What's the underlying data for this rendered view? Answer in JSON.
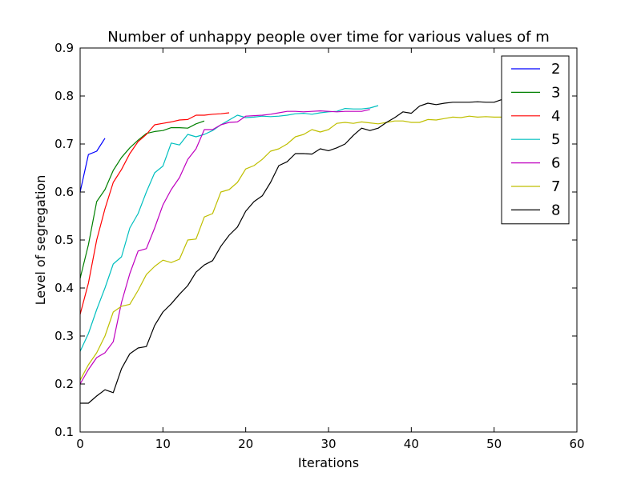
{
  "chart_data": {
    "type": "line",
    "title": "Number of unhappy people over time for various values of m",
    "xlabel": "Iterations",
    "ylabel": "Level of segregation",
    "xlim": [
      0,
      60
    ],
    "ylim": [
      0.1,
      0.9
    ],
    "xticks": [
      "0",
      "10",
      "20",
      "30",
      "40",
      "50",
      "60"
    ],
    "yticks": [
      "0.1",
      "0.2",
      "0.3",
      "0.4",
      "0.5",
      "0.6",
      "0.7",
      "0.8",
      "0.9"
    ],
    "grid": false,
    "legend_position": "top-right",
    "series": [
      {
        "name": "2",
        "color": "#0000ff",
        "values": [
          [
            0,
            0.6
          ],
          [
            1,
            0.678
          ],
          [
            2,
            0.685
          ],
          [
            3,
            0.712
          ]
        ]
      },
      {
        "name": "3",
        "color": "#008000",
        "values": [
          [
            0,
            0.42
          ],
          [
            1,
            0.49
          ],
          [
            2,
            0.58
          ],
          [
            3,
            0.605
          ],
          [
            4,
            0.645
          ],
          [
            5,
            0.672
          ],
          [
            6,
            0.692
          ],
          [
            7,
            0.708
          ],
          [
            8,
            0.722
          ],
          [
            9,
            0.726
          ],
          [
            10,
            0.728
          ],
          [
            11,
            0.734
          ],
          [
            12,
            0.734
          ],
          [
            13,
            0.733
          ],
          [
            14,
            0.742
          ],
          [
            15,
            0.748
          ]
        ]
      },
      {
        "name": "4",
        "color": "#ff0000",
        "values": [
          [
            0,
            0.345
          ],
          [
            1,
            0.41
          ],
          [
            2,
            0.5
          ],
          [
            3,
            0.565
          ],
          [
            4,
            0.62
          ],
          [
            5,
            0.647
          ],
          [
            6,
            0.68
          ],
          [
            7,
            0.705
          ],
          [
            8,
            0.72
          ],
          [
            9,
            0.74
          ],
          [
            10,
            0.743
          ],
          [
            11,
            0.746
          ],
          [
            12,
            0.75
          ],
          [
            13,
            0.751
          ],
          [
            14,
            0.76
          ],
          [
            15,
            0.76
          ],
          [
            16,
            0.762
          ],
          [
            17,
            0.763
          ],
          [
            18,
            0.765
          ]
        ]
      },
      {
        "name": "5",
        "color": "#00bfbf",
        "values": [
          [
            0,
            0.268
          ],
          [
            1,
            0.305
          ],
          [
            2,
            0.355
          ],
          [
            3,
            0.4
          ],
          [
            4,
            0.45
          ],
          [
            5,
            0.465
          ],
          [
            6,
            0.525
          ],
          [
            7,
            0.555
          ],
          [
            8,
            0.6
          ],
          [
            9,
            0.64
          ],
          [
            10,
            0.654
          ],
          [
            11,
            0.702
          ],
          [
            12,
            0.698
          ],
          [
            13,
            0.72
          ],
          [
            14,
            0.715
          ],
          [
            15,
            0.72
          ],
          [
            16,
            0.728
          ],
          [
            17,
            0.74
          ],
          [
            18,
            0.75
          ],
          [
            19,
            0.76
          ],
          [
            20,
            0.755
          ],
          [
            21,
            0.756
          ],
          [
            22,
            0.758
          ],
          [
            23,
            0.757
          ],
          [
            24,
            0.758
          ],
          [
            25,
            0.76
          ],
          [
            26,
            0.763
          ],
          [
            27,
            0.764
          ],
          [
            28,
            0.762
          ],
          [
            29,
            0.765
          ],
          [
            30,
            0.767
          ],
          [
            31,
            0.768
          ],
          [
            32,
            0.774
          ],
          [
            33,
            0.773
          ],
          [
            34,
            0.773
          ],
          [
            35,
            0.775
          ],
          [
            36,
            0.78
          ]
        ]
      },
      {
        "name": "6",
        "color": "#bf00bf",
        "values": [
          [
            0,
            0.2
          ],
          [
            1,
            0.23
          ],
          [
            2,
            0.255
          ],
          [
            3,
            0.265
          ],
          [
            4,
            0.288
          ],
          [
            5,
            0.37
          ],
          [
            6,
            0.43
          ],
          [
            7,
            0.477
          ],
          [
            8,
            0.482
          ],
          [
            9,
            0.525
          ],
          [
            10,
            0.573
          ],
          [
            11,
            0.605
          ],
          [
            12,
            0.63
          ],
          [
            13,
            0.668
          ],
          [
            14,
            0.69
          ],
          [
            15,
            0.73
          ],
          [
            16,
            0.73
          ],
          [
            17,
            0.74
          ],
          [
            18,
            0.745
          ],
          [
            19,
            0.746
          ],
          [
            20,
            0.758
          ],
          [
            21,
            0.759
          ],
          [
            22,
            0.76
          ],
          [
            23,
            0.762
          ],
          [
            24,
            0.765
          ],
          [
            25,
            0.768
          ],
          [
            26,
            0.768
          ],
          [
            27,
            0.767
          ],
          [
            28,
            0.768
          ],
          [
            29,
            0.769
          ],
          [
            30,
            0.768
          ],
          [
            31,
            0.767
          ],
          [
            32,
            0.768
          ],
          [
            33,
            0.768
          ],
          [
            34,
            0.768
          ],
          [
            35,
            0.772
          ]
        ]
      },
      {
        "name": "7",
        "color": "#bfbf00",
        "values": [
          [
            0,
            0.208
          ],
          [
            1,
            0.24
          ],
          [
            2,
            0.265
          ],
          [
            3,
            0.3
          ],
          [
            4,
            0.35
          ],
          [
            5,
            0.362
          ],
          [
            6,
            0.366
          ],
          [
            7,
            0.395
          ],
          [
            8,
            0.428
          ],
          [
            9,
            0.445
          ],
          [
            10,
            0.458
          ],
          [
            11,
            0.453
          ],
          [
            12,
            0.46
          ],
          [
            13,
            0.5
          ],
          [
            14,
            0.502
          ],
          [
            15,
            0.548
          ],
          [
            16,
            0.555
          ],
          [
            17,
            0.6
          ],
          [
            18,
            0.605
          ],
          [
            19,
            0.62
          ],
          [
            20,
            0.648
          ],
          [
            21,
            0.655
          ],
          [
            22,
            0.668
          ],
          [
            23,
            0.685
          ],
          [
            24,
            0.69
          ],
          [
            25,
            0.7
          ],
          [
            26,
            0.715
          ],
          [
            27,
            0.72
          ],
          [
            28,
            0.73
          ],
          [
            29,
            0.725
          ],
          [
            30,
            0.73
          ],
          [
            31,
            0.743
          ],
          [
            32,
            0.745
          ],
          [
            33,
            0.743
          ],
          [
            34,
            0.746
          ],
          [
            35,
            0.744
          ],
          [
            36,
            0.742
          ],
          [
            37,
            0.745
          ],
          [
            38,
            0.748
          ],
          [
            39,
            0.748
          ],
          [
            40,
            0.745
          ],
          [
            41,
            0.745
          ],
          [
            42,
            0.751
          ],
          [
            43,
            0.75
          ],
          [
            44,
            0.753
          ],
          [
            45,
            0.756
          ],
          [
            46,
            0.755
          ],
          [
            47,
            0.758
          ],
          [
            48,
            0.756
          ],
          [
            49,
            0.757
          ],
          [
            50,
            0.756
          ],
          [
            51,
            0.756
          ]
        ]
      },
      {
        "name": "8",
        "color": "#000000",
        "values": [
          [
            0,
            0.16
          ],
          [
            1,
            0.16
          ],
          [
            2,
            0.175
          ],
          [
            3,
            0.188
          ],
          [
            4,
            0.182
          ],
          [
            5,
            0.232
          ],
          [
            6,
            0.263
          ],
          [
            7,
            0.275
          ],
          [
            8,
            0.278
          ],
          [
            9,
            0.322
          ],
          [
            10,
            0.35
          ],
          [
            11,
            0.367
          ],
          [
            12,
            0.387
          ],
          [
            13,
            0.405
          ],
          [
            14,
            0.433
          ],
          [
            15,
            0.448
          ],
          [
            16,
            0.457
          ],
          [
            17,
            0.487
          ],
          [
            18,
            0.51
          ],
          [
            19,
            0.527
          ],
          [
            20,
            0.56
          ],
          [
            21,
            0.58
          ],
          [
            22,
            0.592
          ],
          [
            23,
            0.62
          ],
          [
            24,
            0.655
          ],
          [
            25,
            0.663
          ],
          [
            26,
            0.68
          ],
          [
            27,
            0.68
          ],
          [
            28,
            0.679
          ],
          [
            29,
            0.69
          ],
          [
            30,
            0.686
          ],
          [
            31,
            0.692
          ],
          [
            32,
            0.7
          ],
          [
            33,
            0.718
          ],
          [
            34,
            0.733
          ],
          [
            35,
            0.728
          ],
          [
            36,
            0.733
          ],
          [
            37,
            0.745
          ],
          [
            38,
            0.755
          ],
          [
            39,
            0.767
          ],
          [
            40,
            0.764
          ],
          [
            41,
            0.779
          ],
          [
            42,
            0.785
          ],
          [
            43,
            0.782
          ],
          [
            44,
            0.785
          ],
          [
            45,
            0.787
          ],
          [
            46,
            0.787
          ],
          [
            47,
            0.787
          ],
          [
            48,
            0.788
          ],
          [
            49,
            0.787
          ],
          [
            50,
            0.787
          ],
          [
            51,
            0.793
          ]
        ]
      }
    ]
  }
}
